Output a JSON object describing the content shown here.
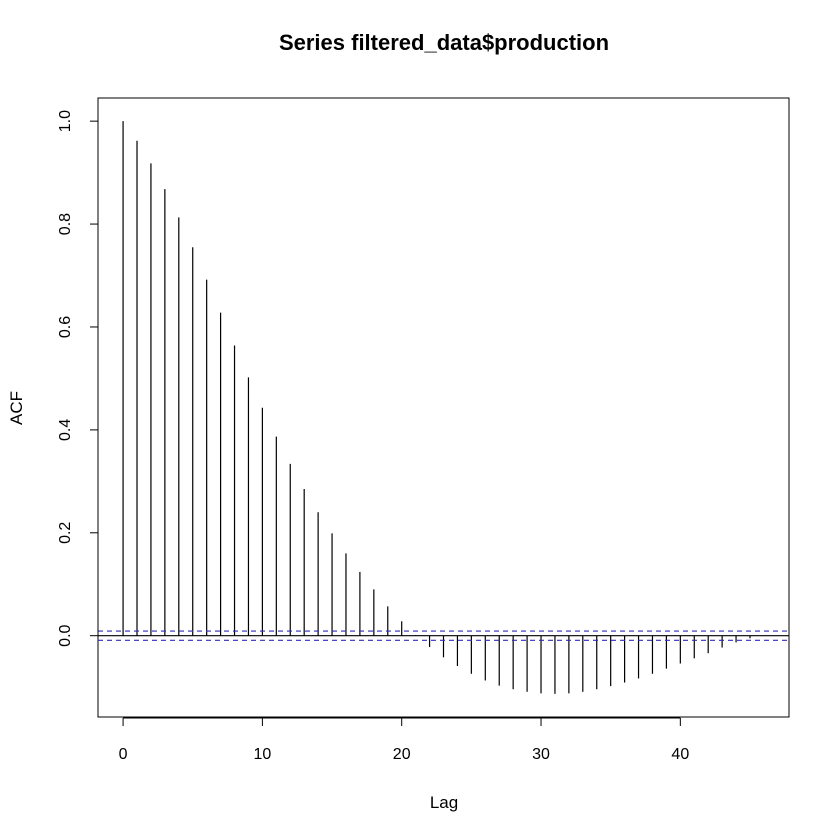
{
  "chart_data": {
    "type": "bar",
    "title": "Series  filtered_data$production",
    "xlabel": "Lag",
    "ylabel": "ACF",
    "xlim": [
      -1.8,
      47.8
    ],
    "ylim": [
      -0.158,
      1.045
    ],
    "x_ticks": [
      0,
      10,
      20,
      30,
      40
    ],
    "y_ticks": [
      0.0,
      0.2,
      0.4,
      0.6,
      0.8,
      1.0
    ],
    "x_tick_labels": [
      "0",
      "10",
      "20",
      "30",
      "40"
    ],
    "y_tick_labels": [
      "0.0",
      "0.2",
      "0.4",
      "0.6",
      "0.8",
      "1.0"
    ],
    "lags": [
      0,
      1,
      2,
      3,
      4,
      5,
      6,
      7,
      8,
      9,
      10,
      11,
      12,
      13,
      14,
      15,
      16,
      17,
      18,
      19,
      20,
      21,
      22,
      23,
      24,
      25,
      26,
      27,
      28,
      29,
      30,
      31,
      32,
      33,
      34,
      35,
      36,
      37,
      38,
      39,
      40,
      41,
      42,
      43,
      44,
      45,
      46
    ],
    "acf": [
      1.0,
      0.962,
      0.918,
      0.868,
      0.813,
      0.755,
      0.692,
      0.628,
      0.564,
      0.502,
      0.443,
      0.387,
      0.334,
      0.285,
      0.24,
      0.199,
      0.16,
      0.124,
      0.09,
      0.057,
      0.028,
      0.001,
      -0.022,
      -0.042,
      -0.059,
      -0.074,
      -0.087,
      -0.097,
      -0.104,
      -0.109,
      -0.112,
      -0.113,
      -0.112,
      -0.109,
      -0.104,
      -0.098,
      -0.091,
      -0.083,
      -0.074,
      -0.064,
      -0.054,
      -0.044,
      -0.034,
      -0.023,
      -0.013,
      -0.005,
      0.0
    ],
    "confidence_bound": 0.009,
    "grid": false,
    "colors": {
      "bars": "#000000",
      "ci_lines": "#2e2ebb",
      "zero_line": "#000000"
    }
  }
}
